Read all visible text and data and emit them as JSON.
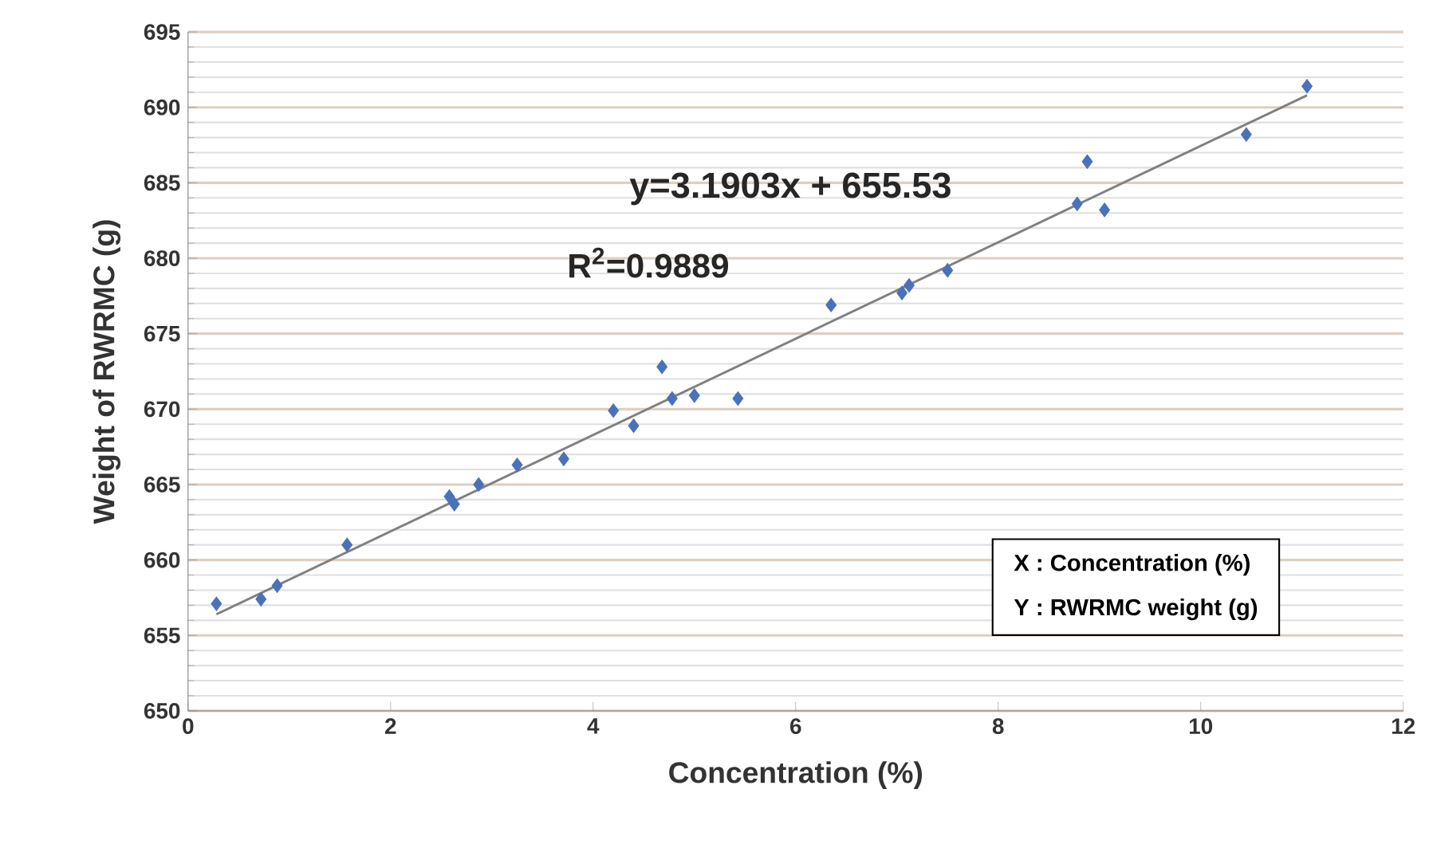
{
  "chart_data": {
    "type": "scatter",
    "xlabel": "Concentration (%)",
    "ylabel": "Weight of RWRMC (g)",
    "xlim": [
      0,
      12
    ],
    "xticks": [
      0,
      2,
      4,
      6,
      8,
      10,
      12
    ],
    "ylim": [
      650,
      695
    ],
    "yticks": [
      650,
      655,
      660,
      665,
      670,
      675,
      680,
      685,
      690,
      695
    ],
    "grid": "y",
    "series": [
      {
        "marker": "diamond",
        "color": "#4a72b8",
        "x": [
          0.28,
          0.72,
          0.88,
          1.57,
          2.58,
          2.63,
          2.87,
          3.25,
          3.71,
          4.2,
          4.4,
          4.68,
          4.78,
          5.0,
          5.43,
          6.35,
          7.05,
          7.12,
          7.5,
          8.78,
          8.88,
          9.05,
          10.45,
          11.05
        ],
        "values": [
          657.1,
          657.4,
          658.3,
          661.0,
          664.2,
          663.7,
          665.0,
          666.3,
          666.7,
          669.9,
          668.9,
          672.8,
          670.7,
          670.9,
          670.7,
          676.9,
          677.7,
          678.2,
          679.2,
          683.6,
          686.4,
          683.2,
          688.2,
          691.4
        ]
      },
      {
        "type": "line",
        "color": "#808080",
        "x": [
          0.28,
          11.05
        ],
        "values": [
          656.4,
          690.8
        ],
        "marker": "none"
      }
    ],
    "annotations": [
      "y=3.1903x + 655.53",
      "R$^{2}$=0.9889",
      "X : Concentration (%)",
      "Y : RWRMC weight (g)"
    ]
  }
}
